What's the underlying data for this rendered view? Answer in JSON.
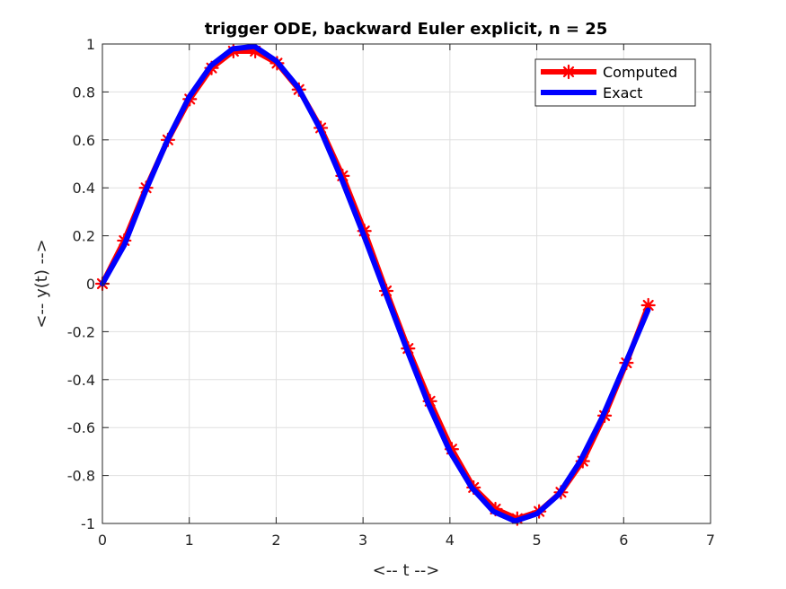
{
  "chart_data": {
    "type": "line",
    "title": "trigger ODE, backward Euler explicit, n = 25",
    "xlabel": "<-- t -->",
    "ylabel": "<-- y(t) -->",
    "xlim": [
      0,
      7
    ],
    "ylim": [
      -1,
      1
    ],
    "xticks": [
      "0",
      "1",
      "2",
      "3",
      "4",
      "5",
      "6",
      "7"
    ],
    "yticks": [
      "-1",
      "-0.8",
      "-0.6",
      "-0.4",
      "-0.2",
      "0",
      "0.2",
      "0.4",
      "0.6",
      "0.8",
      "1"
    ],
    "grid": true,
    "legend_position": "top-right",
    "series": [
      {
        "name": "Computed",
        "color": "#ff0000",
        "marker": "asterisk",
        "x": [
          0,
          0.2513,
          0.5027,
          0.754,
          1.0053,
          1.2566,
          1.508,
          1.7593,
          2.0106,
          2.2619,
          2.5133,
          2.7646,
          3.0159,
          3.2673,
          3.5186,
          3.7699,
          4.0212,
          4.2726,
          4.5239,
          4.7752,
          5.0265,
          5.2779,
          5.5292,
          5.7805,
          6.0319,
          6.2832
        ],
        "y": [
          0,
          0.18,
          0.4,
          0.6,
          0.77,
          0.9,
          0.97,
          0.97,
          0.92,
          0.81,
          0.65,
          0.45,
          0.22,
          -0.03,
          -0.27,
          -0.49,
          -0.69,
          -0.85,
          -0.94,
          -0.98,
          -0.95,
          -0.87,
          -0.74,
          -0.55,
          -0.33,
          -0.09
        ]
      },
      {
        "name": "Exact",
        "color": "#0000ff",
        "x": [
          0,
          0.25,
          0.5,
          0.75,
          1.0,
          1.25,
          1.5,
          1.75,
          2.0,
          2.25,
          2.5,
          2.75,
          3.0,
          3.25,
          3.5,
          3.75,
          4.0,
          4.25,
          4.5,
          4.75,
          5.0,
          5.25,
          5.5,
          5.75,
          6.0,
          6.28
        ],
        "y": [
          0,
          0.16,
          0.39,
          0.6,
          0.78,
          0.91,
          0.98,
          0.99,
          0.93,
          0.82,
          0.65,
          0.44,
          0.21,
          -0.03,
          -0.27,
          -0.5,
          -0.7,
          -0.85,
          -0.95,
          -0.99,
          -0.96,
          -0.88,
          -0.74,
          -0.56,
          -0.35,
          -0.11
        ]
      }
    ]
  }
}
